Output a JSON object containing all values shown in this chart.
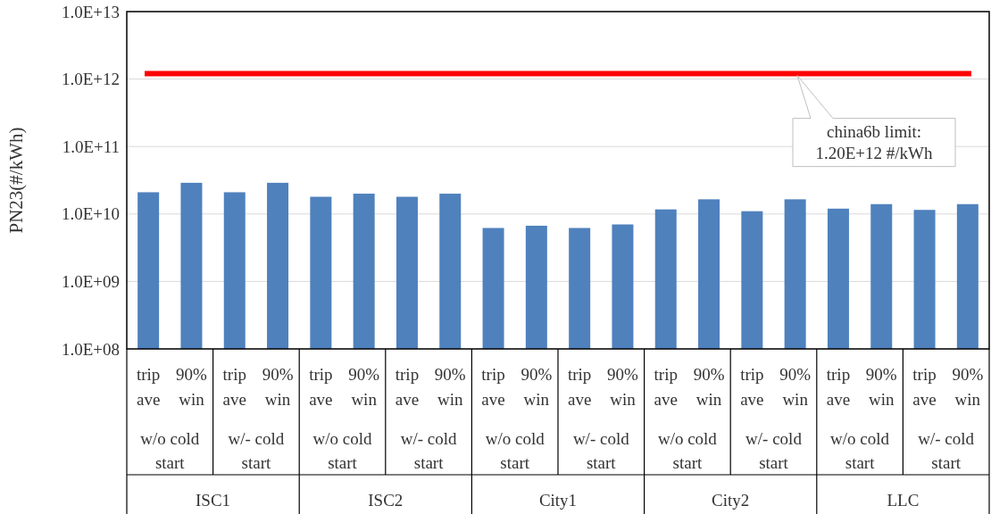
{
  "chart_data": {
    "type": "bar",
    "ylabel": "PN23(#/kWh)",
    "log": true,
    "grid": "y",
    "categories": [
      "trip ave",
      "90% win",
      "trip ave",
      "90% win",
      "trip ave",
      "90% win",
      "trip ave",
      "90% win",
      "trip ave",
      "90% win",
      "trip ave",
      "90% win",
      "trip ave",
      "90% win",
      "trip ave",
      "90% win",
      "trip ave",
      "90% win",
      "trip ave",
      "90% win"
    ],
    "series": [
      {
        "color": "#4f81bd",
        "values": [
          21000000000.0,
          29000000000.0,
          21000000000.0,
          29000000000.0,
          18000000000.0,
          20000000000.0,
          18000000000.0,
          20000000000.0,
          6200000000.0,
          6700000000.0,
          6200000000.0,
          7000000000.0,
          11700000000.0,
          16500000000.0,
          11000000000.0,
          16500000000.0,
          12000000000.0,
          14000000000.0,
          11500000000.0,
          14000000000.0
        ]
      }
    ],
    "ylim": [
      100000000.0,
      10000000000000.0
    ],
    "yticks": [
      {
        "value": 100000000.0,
        "label": "1.0E+08"
      },
      {
        "value": 1000000000.0,
        "label": "1.0E+09"
      },
      {
        "value": 10000000000.0,
        "label": "1.0E+10"
      },
      {
        "value": 100000000000.0,
        "label": "1.0E+11"
      },
      {
        "value": 1000000000000.0,
        "label": "1.0E+12"
      },
      {
        "value": 10000000000000.0,
        "label": "1.0E+13"
      }
    ],
    "ref_lines": [
      {
        "axis": "y",
        "value": 1200000000000.0,
        "color": "#ff0000"
      }
    ],
    "annotations": [
      {
        "text": "china6b limit:\n1.20E+12 #/kWh",
        "y": 1200000000000.0
      },
      "w/o cold start",
      "w/- cold start",
      "w/o cold start",
      "w/- cold start",
      "w/o cold start",
      "w/- cold start",
      "w/o cold start",
      "w/- cold start",
      "w/o cold start",
      "w/- cold start",
      "ISC1",
      "ISC2",
      "City1",
      "City2",
      "LLC"
    ]
  }
}
